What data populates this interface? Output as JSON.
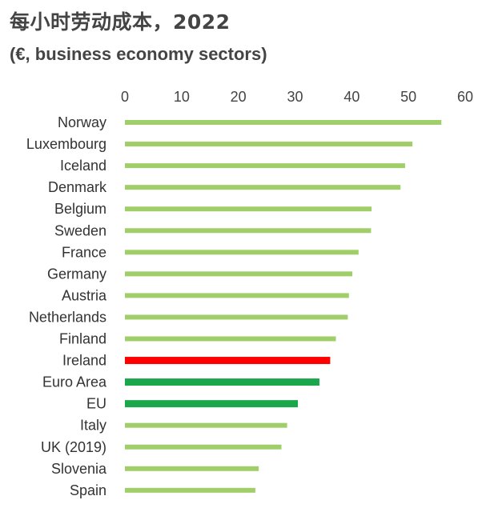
{
  "title": "每小时劳动成本，2022",
  "subtitle": "(€, business economy sectors)",
  "chart_data": {
    "type": "bar",
    "orientation": "horizontal",
    "xlim": [
      0,
      60
    ],
    "x_ticks": [
      "0",
      "10",
      "20",
      "30",
      "40",
      "50",
      "60"
    ],
    "x_axis_position": "top",
    "grid": false,
    "categories": [
      "Norway",
      "Luxembourg",
      "Iceland",
      "Denmark",
      "Belgium",
      "Sweden",
      "France",
      "Germany",
      "Austria",
      "Netherlands",
      "Finland",
      "Ireland",
      "Euro Area",
      "EU",
      "Italy",
      "UK (2019)",
      "Slovenia",
      "Spain"
    ],
    "values": [
      55.8,
      50.7,
      49.4,
      48.6,
      43.5,
      43.4,
      41.2,
      40.1,
      39.5,
      39.3,
      37.2,
      36.2,
      34.3,
      30.5,
      28.6,
      27.6,
      23.6,
      23.0
    ],
    "colors": [
      "#a0cf6a",
      "#a0cf6a",
      "#a0cf6a",
      "#a0cf6a",
      "#a0cf6a",
      "#a0cf6a",
      "#a0cf6a",
      "#a0cf6a",
      "#a0cf6a",
      "#a0cf6a",
      "#a0cf6a",
      "#ff0000",
      "#1aa64b",
      "#1aa64b",
      "#a0cf6a",
      "#a0cf6a",
      "#a0cf6a",
      "#a0cf6a"
    ]
  }
}
